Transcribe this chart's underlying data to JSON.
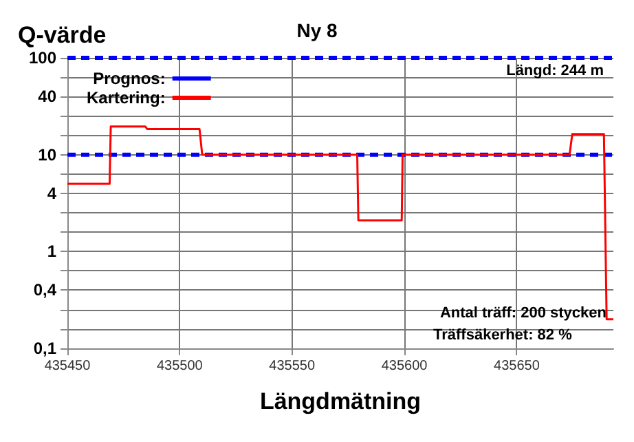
{
  "chart_data": {
    "type": "line",
    "title": "Ny 8",
    "xlabel": "Längdmätning",
    "ylabel": "Q-värde",
    "log": "y",
    "grid": true,
    "legend": "top left",
    "marker": "none",
    "xlim": [
      435450,
      435693
    ],
    "xticks": [
      435450,
      435500,
      435550,
      435600,
      435650
    ],
    "ylim": [
      0.1,
      100
    ],
    "yticks": [
      {
        "value": 0.1,
        "label": "0,1"
      },
      {
        "value": 0.158,
        "label": null
      },
      {
        "value": 0.251,
        "label": null
      },
      {
        "value": 0.4,
        "label": "0,4"
      },
      {
        "value": 0.631,
        "label": null
      },
      1,
      {
        "value": 1.58,
        "label": null
      },
      {
        "value": 2.51,
        "label": null
      },
      4,
      {
        "value": 6.31,
        "label": null
      },
      10,
      {
        "value": 15.8,
        "label": null
      },
      {
        "value": 25.1,
        "label": null
      },
      40,
      {
        "value": 63.1,
        "label": null
      },
      100
    ],
    "series": [
      {
        "name": "Prognos:",
        "color": "#0000ff",
        "line_style": "dashed",
        "x": [
          435450,
          435693
        ],
        "values": [
          100,
          100
        ]
      },
      {
        "color": "#0000ff",
        "line_style": "dashed",
        "x": [
          435450,
          435693
        ],
        "values": [
          10,
          10
        ]
      },
      {
        "name": "Kartering:",
        "color": "#ff0000",
        "line_style": "solid",
        "x": [
          435450,
          435468.8,
          435469.3,
          435484.7,
          435485.5,
          435508.8,
          435510,
          435579,
          435579.5,
          435598.8,
          435599.2,
          435673.5,
          435674.7,
          435688.8,
          435690,
          435693
        ],
        "values": [
          5,
          5,
          19.5,
          19.5,
          18.4,
          18.4,
          10,
          10,
          2.1,
          2.1,
          10,
          10,
          16.3,
          16.3,
          0.2,
          0.2
        ]
      }
    ],
    "annotations": [
      "Längd: 244 m",
      "Antal träff: 200 stycken",
      "Träffsäkerhet: 82 %"
    ]
  }
}
